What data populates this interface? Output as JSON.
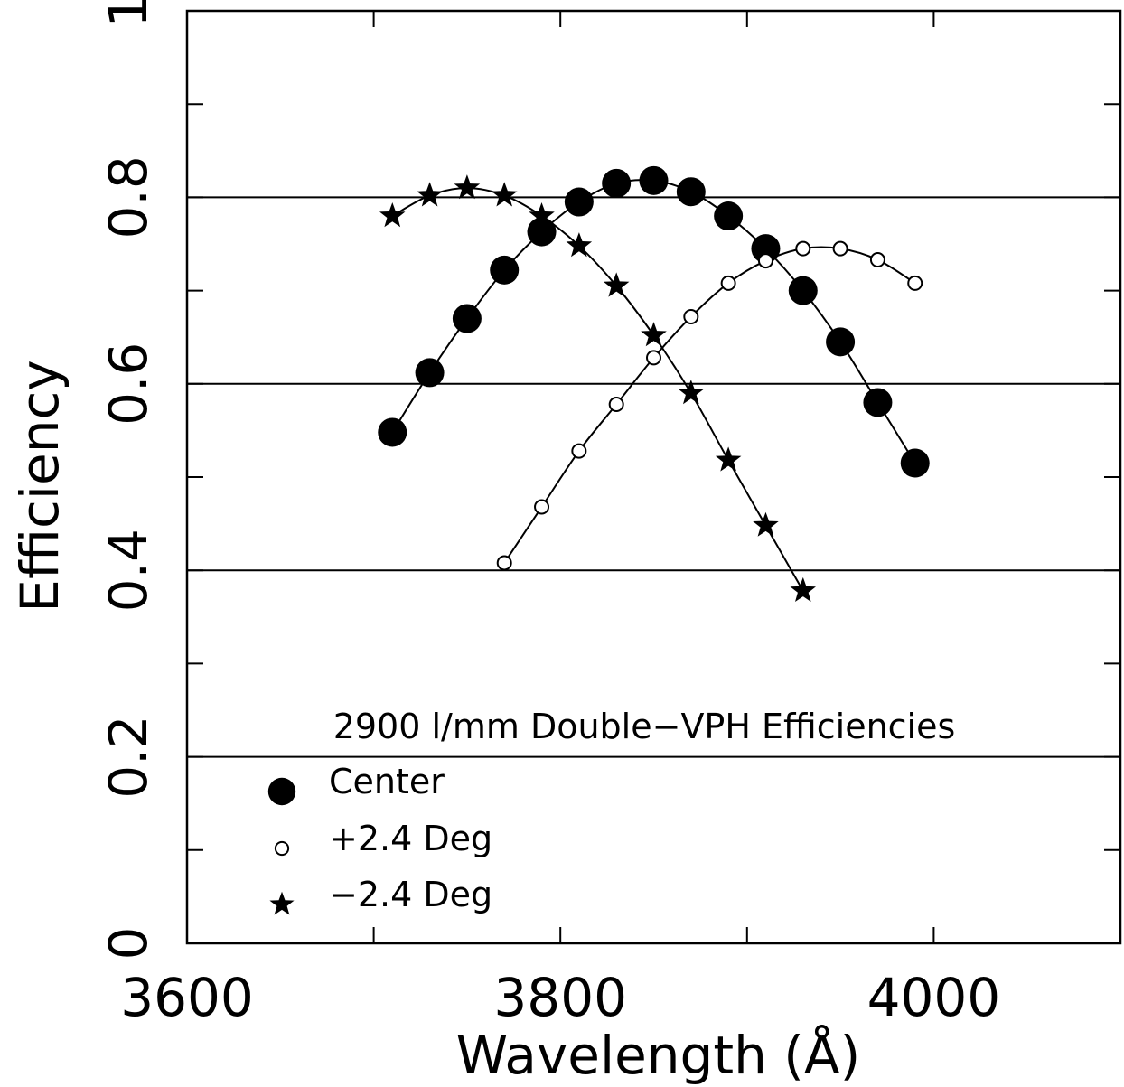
{
  "chart_data": {
    "type": "line",
    "xlabel": "Wavelength (Å)",
    "ylabel": "Efficiency",
    "xlim": [
      3600,
      4100
    ],
    "ylim": [
      0,
      1
    ],
    "xticks": [
      3600,
      3800,
      4000
    ],
    "xtick_labels": [
      "3600",
      "3800",
      "4000"
    ],
    "xminor": [
      3700,
      3900
    ],
    "yticks": [
      0,
      0.2,
      0.4,
      0.6,
      0.8,
      1
    ],
    "ytick_labels": [
      "0",
      "0.2",
      "0.4",
      "0.6",
      "0.8",
      "1"
    ],
    "yminor": [
      0.1,
      0.3,
      0.5,
      0.7,
      0.9
    ],
    "hgrid": [
      0.2,
      0.4,
      0.6,
      0.8
    ],
    "legend": {
      "title": "2900 l/mm Double−VPH Efficiencies",
      "placement": "bottom-left"
    },
    "series": [
      {
        "name": "Center",
        "marker": "filled-circle",
        "x": [
          3710,
          3730,
          3750,
          3770,
          3790,
          3810,
          3830,
          3850,
          3870,
          3890,
          3910,
          3930,
          3950,
          3970,
          3990
        ],
        "y": [
          0.548,
          0.612,
          0.67,
          0.722,
          0.763,
          0.795,
          0.815,
          0.818,
          0.806,
          0.78,
          0.745,
          0.7,
          0.645,
          0.58,
          0.515
        ]
      },
      {
        "name": "+2.4 Deg",
        "marker": "open-circle",
        "x": [
          3770,
          3790,
          3810,
          3830,
          3850,
          3870,
          3890,
          3910,
          3930,
          3950,
          3970,
          3990
        ],
        "y": [
          0.408,
          0.468,
          0.528,
          0.578,
          0.628,
          0.672,
          0.708,
          0.732,
          0.745,
          0.745,
          0.733,
          0.708
        ]
      },
      {
        "name": "−2.4 Deg",
        "marker": "star",
        "x": [
          3710,
          3730,
          3750,
          3770,
          3790,
          3810,
          3830,
          3850,
          3870,
          3890,
          3910,
          3930
        ],
        "y": [
          0.78,
          0.802,
          0.81,
          0.802,
          0.78,
          0.748,
          0.705,
          0.652,
          0.59,
          0.518,
          0.448,
          0.378
        ]
      }
    ]
  }
}
